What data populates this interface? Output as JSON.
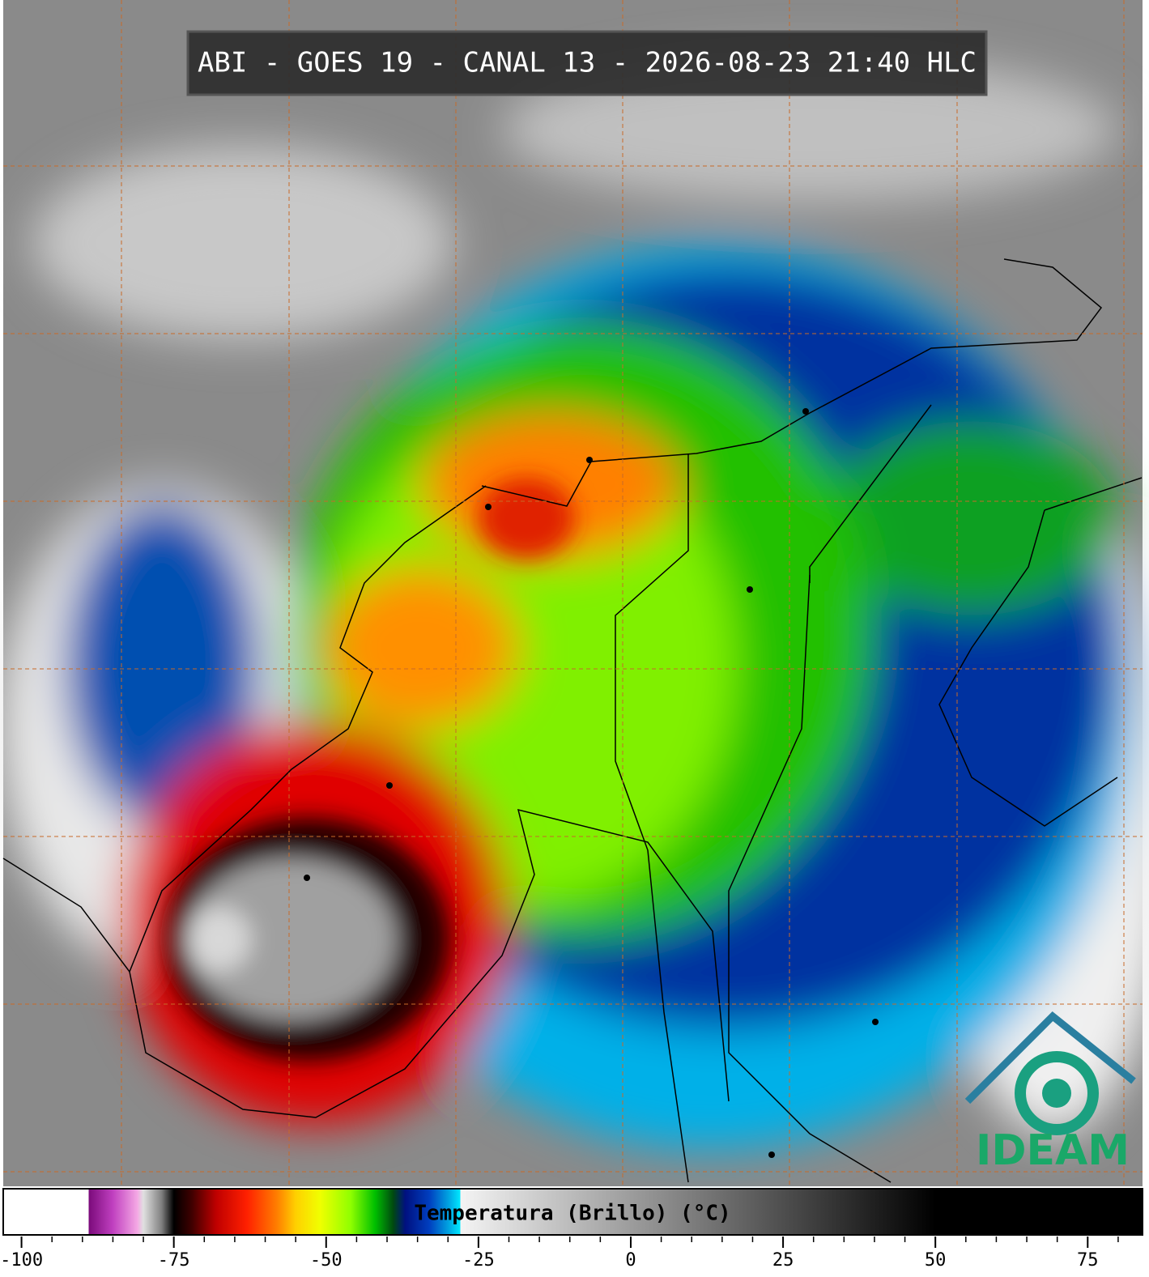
{
  "title": "ABI - GOES 19 - CANAL 13 - 2026-08-23 21:40 HLC",
  "colorbar": {
    "label": "Temperatura (Brillo) (°C)",
    "lim": [
      -103,
      84
    ],
    "ticks": [
      -100,
      -75,
      -50,
      -25,
      0,
      25,
      50,
      75
    ],
    "colormap": [
      {
        "value": -103,
        "color": "#ffffff"
      },
      {
        "value": -89,
        "color": "#ffffff"
      },
      {
        "value": -89,
        "color": "#7a0a7a"
      },
      {
        "value": -85,
        "color": "#c040c0"
      },
      {
        "value": -81,
        "color": "#f4a8e4"
      },
      {
        "value": -80,
        "color": "#e0e0e0"
      },
      {
        "value": -77,
        "color": "#808080"
      },
      {
        "value": -75,
        "color": "#000000"
      },
      {
        "value": -72,
        "color": "#400000"
      },
      {
        "value": -68,
        "color": "#c00000"
      },
      {
        "value": -63,
        "color": "#ff2000"
      },
      {
        "value": -58,
        "color": "#ff8000"
      },
      {
        "value": -55,
        "color": "#ffd000"
      },
      {
        "value": -51,
        "color": "#f0ff00"
      },
      {
        "value": -46,
        "color": "#90ff00"
      },
      {
        "value": -42,
        "color": "#00c000"
      },
      {
        "value": -39,
        "color": "#004a10"
      },
      {
        "value": -37,
        "color": "#001080"
      },
      {
        "value": -33,
        "color": "#0040c0"
      },
      {
        "value": -30,
        "color": "#00a0e0"
      },
      {
        "value": -28,
        "color": "#00e8ff"
      },
      {
        "value": -28,
        "color": "#f4f4f4"
      },
      {
        "value": 50,
        "color": "#000000"
      },
      {
        "value": 84,
        "color": "#000000"
      }
    ]
  },
  "logo": "IDEAM"
}
